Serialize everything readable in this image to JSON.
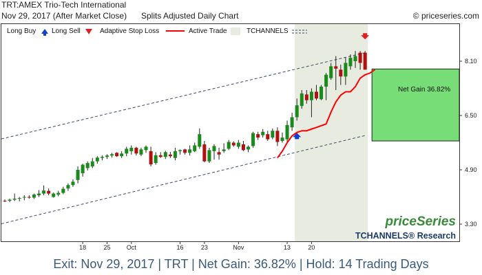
{
  "header": {
    "symbol_line": "TRT:AMEX Trio-Tech International",
    "date_line": "Nov 29, 2017 (After Market Close)",
    "chart_type": "Splits Adjusted Daily Chart",
    "copyright": "© priceseries.com"
  },
  "legend": {
    "long_buy": "Long Buy",
    "long_sell": "Long Sell",
    "stop_loss": "Adaptive Stop Loss",
    "active_trade": "Active Trade",
    "tchannels": "TCHANNELS"
  },
  "annotation": {
    "net_gain": "Net Gain 36.82%"
  },
  "branding": {
    "logo": "priceSeries",
    "research": "TCHANNELS® Research"
  },
  "footer": {
    "text": "Exit: Nov 29, 2017 | TRT | Net Gain: 36.82% | Hold: 14 Trading Days"
  },
  "colors": {
    "up_candle": "#1a8a1a",
    "down_candle": "#b01010",
    "stop_loss": "#ff0000",
    "buy_arrow": "#1040d0",
    "sell_arrow": "#e02020",
    "gain_box": "#77dd77",
    "active_trade_bg": "#e8ebe0",
    "channel": "#3a4a6a",
    "brand": "#1a3a6a",
    "logo_green": "#3a8a3a"
  },
  "chart_data": {
    "type": "candlestick",
    "yticks": [
      3.3,
      4.9,
      6.5,
      8.1
    ],
    "ylim": [
      2.8,
      9.2
    ],
    "xticks": [
      {
        "label": "18",
        "index": 16
      },
      {
        "label": "25",
        "index": 21
      },
      {
        "label": "Oct",
        "index": 26
      },
      {
        "label": "16",
        "index": 36
      },
      {
        "label": "23",
        "index": 41
      },
      {
        "label": "Nov",
        "index": 48
      },
      {
        "label": "13",
        "index": 58
      },
      {
        "label": "20",
        "index": 63
      }
    ],
    "candles": [
      {
        "o": 3.99,
        "h": 4.03,
        "l": 3.95,
        "c": 3.98
      },
      {
        "o": 3.99,
        "h": 4.05,
        "l": 3.95,
        "c": 4.02
      },
      {
        "o": 4.02,
        "h": 4.2,
        "l": 3.98,
        "c": 4.05
      },
      {
        "o": 4.05,
        "h": 4.1,
        "l": 3.97,
        "c": 4.07
      },
      {
        "o": 4.08,
        "h": 4.15,
        "l": 4.0,
        "c": 4.1
      },
      {
        "o": 4.1,
        "h": 4.15,
        "l": 4.05,
        "c": 4.08
      },
      {
        "o": 4.08,
        "h": 4.2,
        "l": 4.04,
        "c": 4.17
      },
      {
        "o": 4.15,
        "h": 4.3,
        "l": 4.1,
        "c": 4.2
      },
      {
        "o": 4.2,
        "h": 4.44,
        "l": 4.15,
        "c": 4.29
      },
      {
        "o": 4.28,
        "h": 4.35,
        "l": 4.15,
        "c": 4.2
      },
      {
        "o": 4.1,
        "h": 4.23,
        "l": 4.08,
        "c": 4.2
      },
      {
        "o": 4.17,
        "h": 4.28,
        "l": 4.12,
        "c": 4.22
      },
      {
        "o": 4.22,
        "h": 4.4,
        "l": 4.18,
        "c": 4.34
      },
      {
        "o": 4.35,
        "h": 4.5,
        "l": 4.28,
        "c": 4.45
      },
      {
        "o": 4.45,
        "h": 4.62,
        "l": 4.4,
        "c": 4.55
      },
      {
        "o": 4.6,
        "h": 5.0,
        "l": 4.5,
        "c": 4.9
      },
      {
        "o": 4.8,
        "h": 5.08,
        "l": 4.7,
        "c": 5.05
      },
      {
        "o": 4.95,
        "h": 5.15,
        "l": 4.88,
        "c": 5.1
      },
      {
        "o": 5.0,
        "h": 5.25,
        "l": 4.95,
        "c": 5.15
      },
      {
        "o": 5.15,
        "h": 5.3,
        "l": 5.08,
        "c": 5.26
      },
      {
        "o": 5.25,
        "h": 5.33,
        "l": 5.18,
        "c": 5.28
      },
      {
        "o": 5.28,
        "h": 5.36,
        "l": 5.22,
        "c": 5.32
      },
      {
        "o": 5.32,
        "h": 5.4,
        "l": 5.26,
        "c": 5.36
      },
      {
        "o": 5.4,
        "h": 5.42,
        "l": 5.28,
        "c": 5.3
      },
      {
        "o": 5.3,
        "h": 5.45,
        "l": 5.25,
        "c": 5.38
      },
      {
        "o": 5.38,
        "h": 5.58,
        "l": 5.3,
        "c": 5.52
      },
      {
        "o": 5.45,
        "h": 5.62,
        "l": 5.35,
        "c": 5.55
      },
      {
        "o": 5.55,
        "h": 5.58,
        "l": 5.32,
        "c": 5.38
      },
      {
        "o": 5.35,
        "h": 5.55,
        "l": 5.3,
        "c": 5.5
      },
      {
        "o": 5.48,
        "h": 5.62,
        "l": 5.4,
        "c": 5.58
      },
      {
        "o": 5.45,
        "h": 5.58,
        "l": 5.0,
        "c": 5.06
      },
      {
        "o": 5.1,
        "h": 5.42,
        "l": 5.05,
        "c": 5.33
      },
      {
        "o": 5.33,
        "h": 5.42,
        "l": 5.25,
        "c": 5.28
      },
      {
        "o": 5.28,
        "h": 5.46,
        "l": 5.22,
        "c": 5.42
      },
      {
        "o": 5.35,
        "h": 5.43,
        "l": 5.25,
        "c": 5.3
      },
      {
        "o": 5.25,
        "h": 5.55,
        "l": 5.18,
        "c": 5.45
      },
      {
        "o": 5.45,
        "h": 5.5,
        "l": 5.35,
        "c": 5.48
      },
      {
        "o": 5.5,
        "h": 5.52,
        "l": 5.35,
        "c": 5.4
      },
      {
        "o": 5.4,
        "h": 5.62,
        "l": 5.32,
        "c": 5.5
      },
      {
        "o": 5.45,
        "h": 5.7,
        "l": 5.42,
        "c": 5.62
      },
      {
        "o": 5.58,
        "h": 6.12,
        "l": 5.52,
        "c": 5.95
      },
      {
        "o": 5.65,
        "h": 5.75,
        "l": 5.12,
        "c": 5.15
      },
      {
        "o": 5.15,
        "h": 5.55,
        "l": 5.1,
        "c": 5.48
      },
      {
        "o": 5.45,
        "h": 5.65,
        "l": 5.2,
        "c": 5.6
      },
      {
        "o": 5.42,
        "h": 5.55,
        "l": 5.2,
        "c": 5.35
      },
      {
        "o": 5.45,
        "h": 5.68,
        "l": 5.4,
        "c": 5.5
      },
      {
        "o": 5.52,
        "h": 5.78,
        "l": 5.48,
        "c": 5.72
      },
      {
        "o": 5.7,
        "h": 5.74,
        "l": 5.58,
        "c": 5.62
      },
      {
        "o": 5.58,
        "h": 5.78,
        "l": 5.52,
        "c": 5.7
      },
      {
        "o": 5.65,
        "h": 5.75,
        "l": 5.45,
        "c": 5.48
      },
      {
        "o": 5.5,
        "h": 5.62,
        "l": 5.42,
        "c": 5.58
      },
      {
        "o": 5.6,
        "h": 6.02,
        "l": 5.55,
        "c": 5.98
      },
      {
        "o": 5.95,
        "h": 6.02,
        "l": 5.78,
        "c": 5.85
      },
      {
        "o": 5.92,
        "h": 6.1,
        "l": 5.85,
        "c": 6.02
      },
      {
        "o": 5.95,
        "h": 6.05,
        "l": 5.75,
        "c": 5.8
      },
      {
        "o": 5.85,
        "h": 6.12,
        "l": 5.8,
        "c": 6.05
      },
      {
        "o": 6.05,
        "h": 6.15,
        "l": 5.6,
        "c": 5.72
      },
      {
        "o": 5.75,
        "h": 6.0,
        "l": 5.7,
        "c": 5.85
      },
      {
        "o": 5.8,
        "h": 6.35,
        "l": 5.72,
        "c": 6.22
      },
      {
        "o": 6.15,
        "h": 6.58,
        "l": 6.05,
        "c": 6.45
      },
      {
        "o": 6.45,
        "h": 7.0,
        "l": 6.35,
        "c": 6.8
      },
      {
        "o": 6.78,
        "h": 7.25,
        "l": 6.7,
        "c": 7.15
      },
      {
        "o": 7.12,
        "h": 7.25,
        "l": 6.85,
        "c": 6.95
      },
      {
        "o": 6.95,
        "h": 7.3,
        "l": 6.45,
        "c": 7.2
      },
      {
        "o": 7.2,
        "h": 7.4,
        "l": 6.95,
        "c": 7.0
      },
      {
        "o": 6.98,
        "h": 7.4,
        "l": 6.95,
        "c": 7.35
      },
      {
        "o": 7.35,
        "h": 7.75,
        "l": 6.95,
        "c": 7.7
      },
      {
        "o": 7.6,
        "h": 8.05,
        "l": 7.55,
        "c": 7.95
      },
      {
        "o": 7.95,
        "h": 8.25,
        "l": 7.25,
        "c": 7.88
      },
      {
        "o": 7.85,
        "h": 8.0,
        "l": 7.4,
        "c": 7.65
      },
      {
        "o": 7.65,
        "h": 8.2,
        "l": 7.4,
        "c": 8.05
      },
      {
        "o": 7.95,
        "h": 8.3,
        "l": 7.85,
        "c": 8.2
      },
      {
        "o": 8.1,
        "h": 8.4,
        "l": 7.9,
        "c": 8.25
      },
      {
        "o": 8.35,
        "h": 8.4,
        "l": 7.85,
        "c": 8.05
      },
      {
        "o": 8.35,
        "h": 8.4,
        "l": 7.9,
        "c": 7.85
      }
    ],
    "entry_index": 60,
    "exit_index": 74,
    "stop_loss": [
      5.25,
      5.45,
      5.7,
      5.9,
      6.0,
      6.05,
      6.05,
      6.1,
      6.15,
      6.2,
      6.25,
      6.6,
      6.9,
      7.1,
      7.2,
      7.2,
      7.35,
      7.6,
      7.7,
      7.75,
      7.85
    ],
    "stop_loss_start_index": 56,
    "gain_box": {
      "top": 7.87,
      "bottom": 5.75
    },
    "channel_upper": {
      "start": 5.81,
      "end": 8.35
    },
    "channel_lower": {
      "start": 3.31,
      "end": 5.91
    }
  }
}
